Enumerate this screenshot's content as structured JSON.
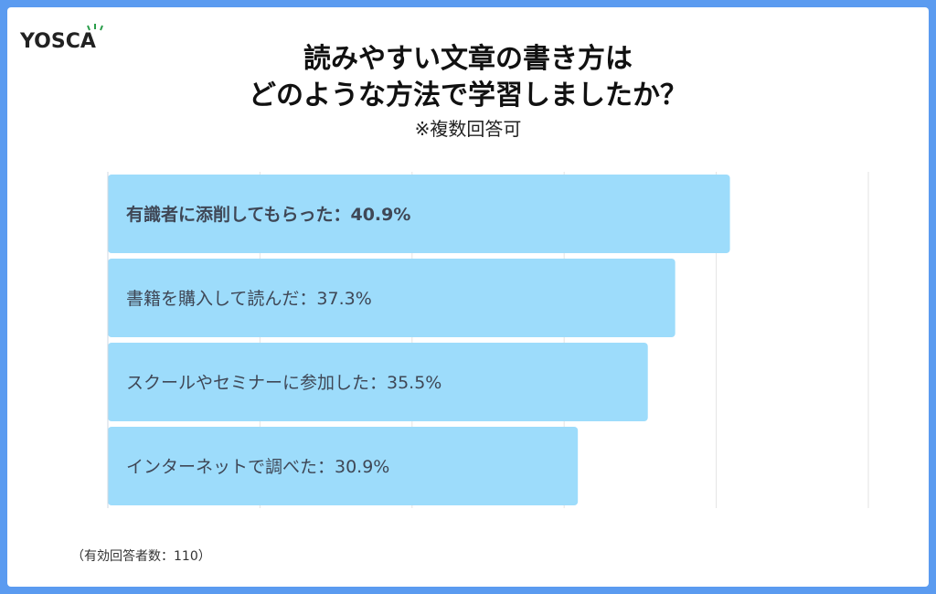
{
  "logo": {
    "text": "YOSCA"
  },
  "title_line1": "読みやすい文章の書き方は",
  "title_line2": "どのような方法で学習しましたか？",
  "subtitle": "※複数回答可",
  "footnote": "（有効回答者数：110）",
  "colors": {
    "bar": "#9ddcfb",
    "frame": "#5b9bf0",
    "grid": "#e3e3e3",
    "label": "#3f4756"
  },
  "chart_data": {
    "type": "bar",
    "orientation": "horizontal",
    "xlim": [
      0,
      50
    ],
    "grid": true,
    "series": [
      {
        "values": [
          40.9,
          37.3,
          35.5,
          30.9
        ],
        "labels": [
          "有識者に添削してもらった：40.9%",
          "書籍を購入して読んだ：37.3%",
          "スクールやセミナーに参加した：35.5%",
          "インターネットで調べた：30.9%"
        ]
      }
    ]
  }
}
